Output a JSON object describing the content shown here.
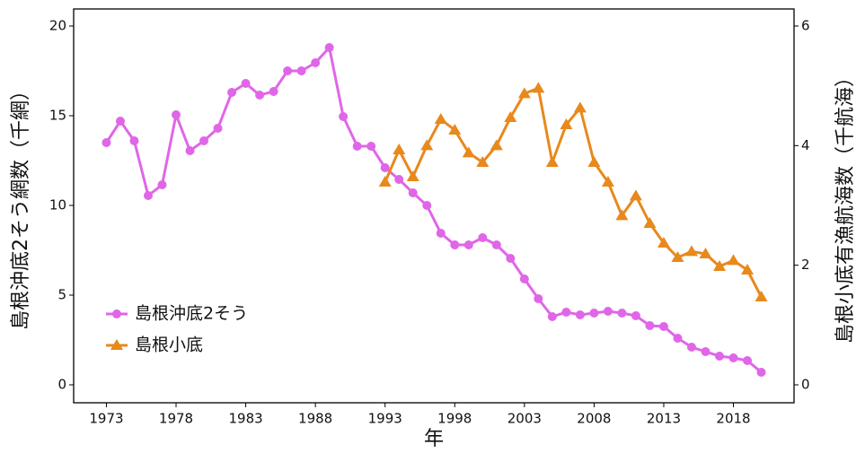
{
  "chart_data": {
    "type": "line",
    "x_label": "年",
    "y_label": "島根沖底2そう網数（千網）",
    "y2_label": "島根小底有漁航海数（千航海）",
    "x": [
      1973,
      1974,
      1975,
      1976,
      1977,
      1978,
      1979,
      1980,
      1981,
      1982,
      1983,
      1984,
      1985,
      1986,
      1987,
      1988,
      1989,
      1990,
      1991,
      1992,
      1993,
      1994,
      1995,
      1996,
      1997,
      1998,
      1999,
      2000,
      2001,
      2002,
      2003,
      2004,
      2005,
      2006,
      2007,
      2008,
      2009,
      2010,
      2011,
      2012,
      2013,
      2014,
      2015,
      2016,
      2017,
      2018,
      2019,
      2020
    ],
    "series": [
      {
        "name": "島根沖底2そう",
        "color": "#e066e8",
        "marker": "circle",
        "values": [
          13.5,
          14.7,
          13.6,
          10.55,
          11.15,
          15.05,
          13.05,
          13.6,
          14.3,
          16.3,
          16.8,
          16.15,
          16.35,
          17.5,
          17.5,
          17.95,
          18.8,
          14.95,
          13.3,
          13.3,
          12.1,
          11.45,
          10.7,
          10.0,
          8.45,
          7.8,
          7.8,
          8.2,
          7.8,
          7.05,
          5.9,
          4.8,
          3.8,
          4.05,
          3.9,
          4.0,
          4.1,
          4.0,
          3.85,
          3.3,
          3.25,
          2.6,
          2.1,
          1.85,
          1.6,
          1.5,
          1.35,
          0.7
        ]
      },
      {
        "name": "島根小底",
        "color": "#e8891c",
        "marker": "triangle",
        "axis": "y2",
        "values": [
          null,
          null,
          null,
          null,
          null,
          null,
          null,
          null,
          null,
          null,
          null,
          null,
          null,
          null,
          null,
          null,
          null,
          null,
          null,
          null,
          3.39,
          3.93,
          3.48,
          4.0,
          4.44,
          4.26,
          3.88,
          3.72,
          4.0,
          4.47,
          4.87,
          4.96,
          3.72,
          4.35,
          4.63,
          3.72,
          3.39,
          2.83,
          3.16,
          2.7,
          2.37,
          2.13,
          2.23,
          2.19,
          1.98,
          2.08,
          1.92,
          1.47
        ]
      }
    ],
    "xlim": [
      1970.65,
      2022.35
    ],
    "xticks": [
      1973,
      1978,
      1983,
      1988,
      1993,
      1998,
      2003,
      2008,
      2013,
      2018
    ],
    "ylim": [
      -1,
      20.95
    ],
    "yticks": [
      0,
      5,
      10,
      15,
      20
    ],
    "y2lim": [
      -0.3,
      6.285
    ],
    "y2ticks": [
      0,
      2,
      4,
      6
    ],
    "legend": "bottom-left"
  }
}
